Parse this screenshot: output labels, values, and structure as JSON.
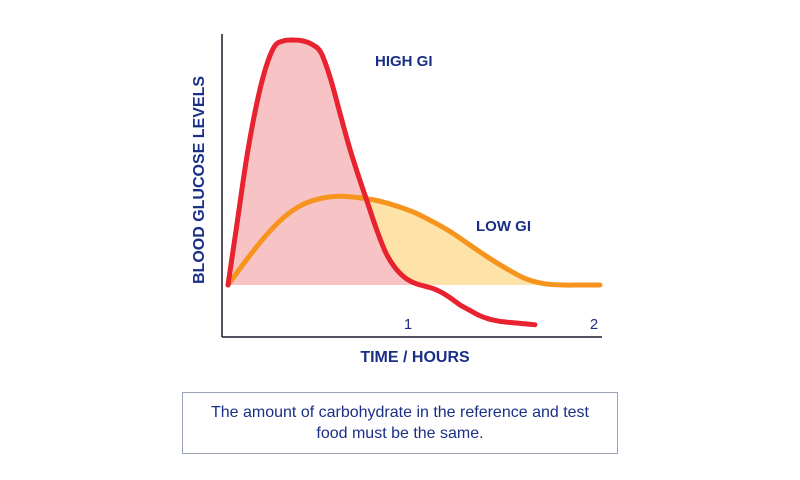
{
  "chart_data": {
    "type": "area",
    "title": "",
    "xlabel": "TIME / HOURS",
    "ylabel": "BLOOD GLUCOSE LEVELS",
    "xlim": [
      0,
      2
    ],
    "ylim": [
      -1,
      6
    ],
    "x_ticks": [
      {
        "value": 1,
        "label": "1"
      },
      {
        "value": 2,
        "label": "2"
      }
    ],
    "grid": false,
    "series": [
      {
        "name": "HIGH GI",
        "line_color": "#e8222e",
        "fill_color": "#f7c3c5",
        "x": [
          0.0,
          0.05,
          0.1,
          0.15,
          0.2,
          0.25,
          0.3,
          0.35,
          0.4,
          0.45,
          0.5,
          0.55,
          0.6,
          0.65,
          0.7,
          0.75,
          0.8,
          0.85,
          0.9,
          0.95,
          1.0,
          1.05,
          1.1,
          1.15,
          1.2,
          1.25,
          1.3,
          1.35,
          1.4,
          1.45,
          1.5,
          1.55,
          1.6,
          1.65
        ],
        "y": [
          0.0,
          1.5,
          3.0,
          4.2,
          5.1,
          5.65,
          5.78,
          5.8,
          5.78,
          5.7,
          5.5,
          4.9,
          4.1,
          3.3,
          2.6,
          1.95,
          1.3,
          0.75,
          0.4,
          0.18,
          0.05,
          -0.02,
          -0.08,
          -0.18,
          -0.32,
          -0.48,
          -0.6,
          -0.72,
          -0.8,
          -0.85,
          -0.88,
          -0.9,
          -0.92,
          -0.94
        ]
      },
      {
        "name": "LOW GI",
        "line_color": "#f7941d",
        "fill_color": "#fde3a7",
        "x": [
          0.0,
          0.1,
          0.2,
          0.3,
          0.4,
          0.5,
          0.6,
          0.7,
          0.8,
          0.9,
          1.0,
          1.1,
          1.2,
          1.3,
          1.4,
          1.5,
          1.6,
          1.7,
          1.8,
          1.9,
          2.0
        ],
        "y": [
          0.0,
          0.6,
          1.15,
          1.6,
          1.9,
          2.05,
          2.1,
          2.07,
          2.0,
          1.88,
          1.72,
          1.5,
          1.25,
          0.95,
          0.65,
          0.38,
          0.15,
          0.03,
          0.0,
          0.0,
          0.0
        ]
      }
    ],
    "note": "The amount of carbohydrate in the reference and test food must be the same."
  }
}
